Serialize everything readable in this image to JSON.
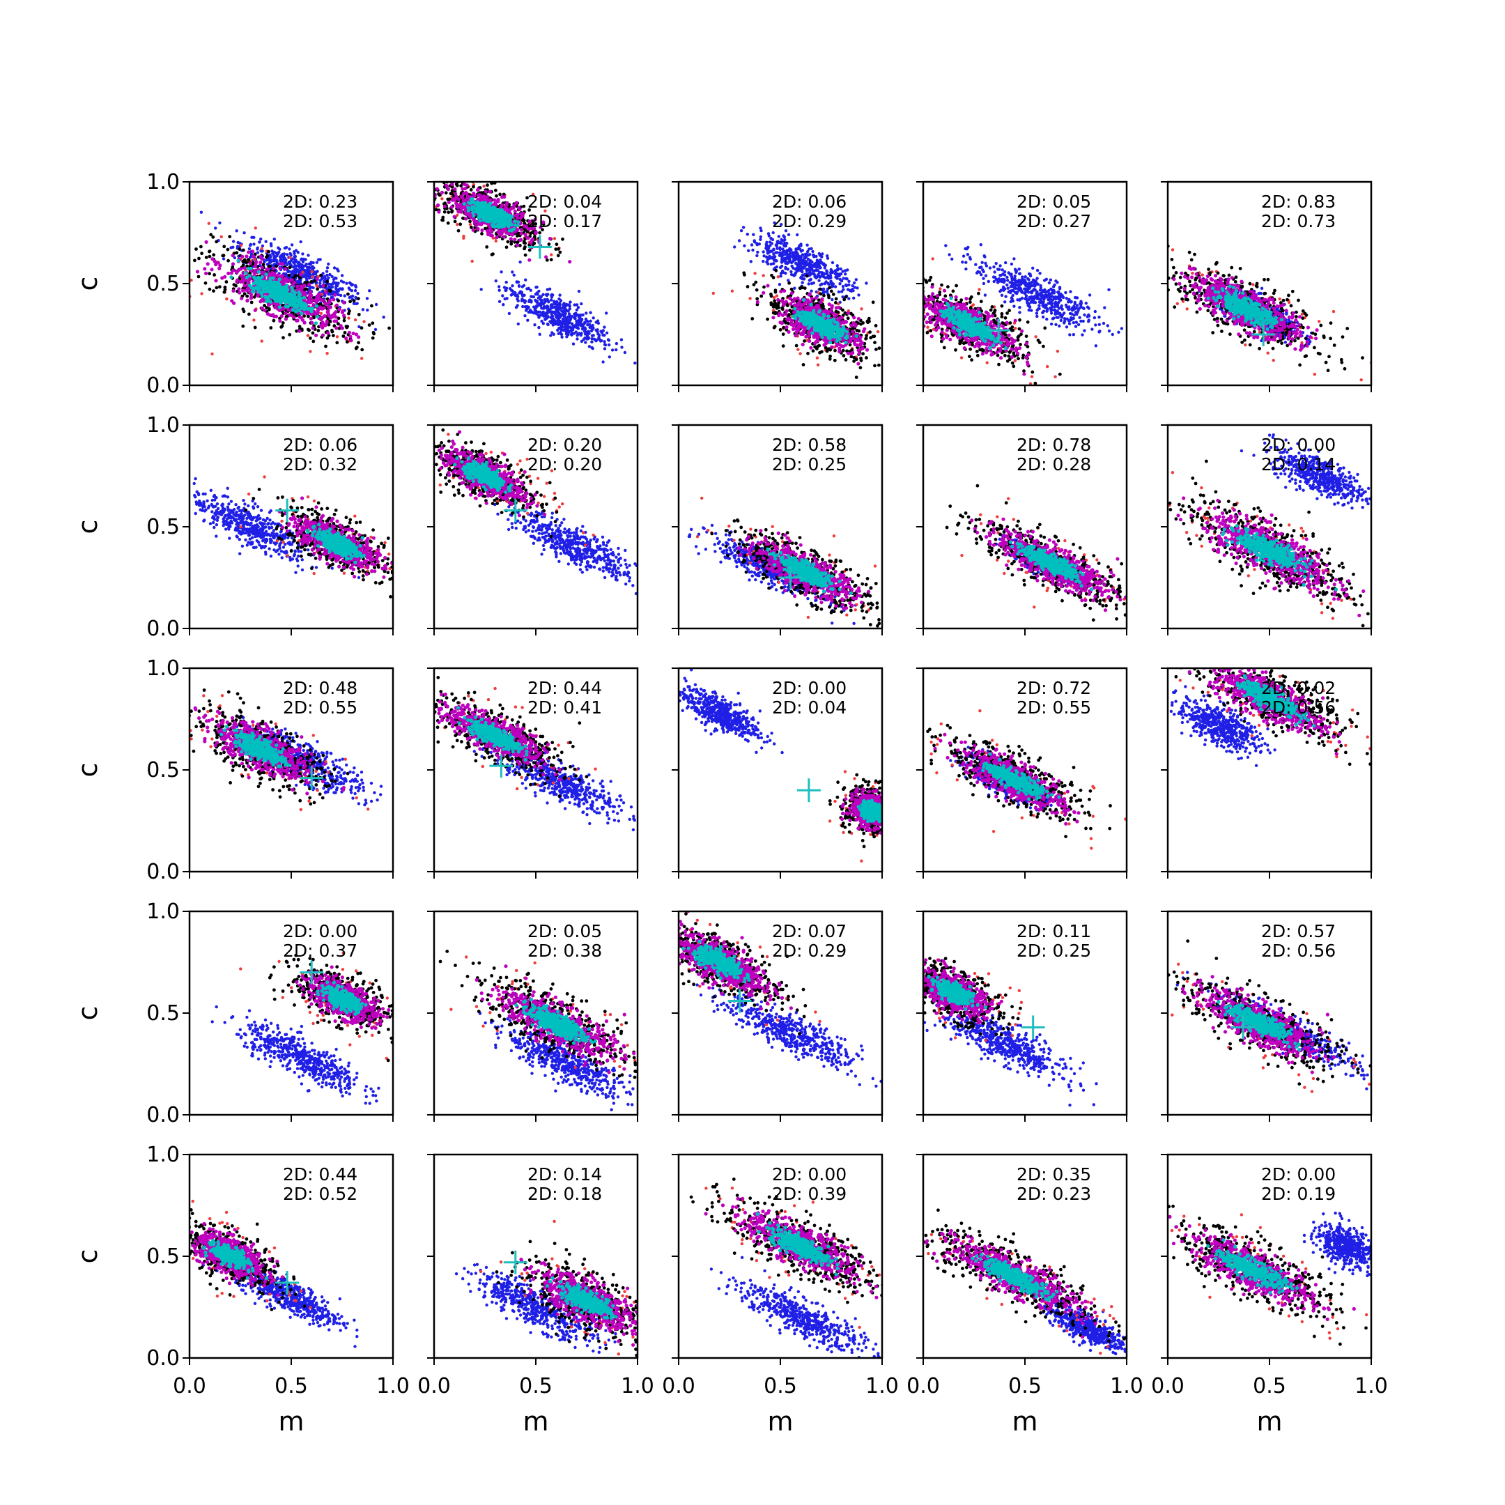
{
  "chart_data": {
    "type": "scatter",
    "layout": "grid 5 rows x 5 columns",
    "xlabel": "m",
    "ylabel": "c",
    "xlim": [
      0,
      1
    ],
    "ylim": [
      0,
      1
    ],
    "xticks": [
      "0.0",
      "0.5",
      "1.0"
    ],
    "yticks": [
      "0.0",
      "0.5",
      "1.0"
    ],
    "stat_prefix": "2D: ",
    "slope": -0.5,
    "colors": {
      "red": "#f03c3c",
      "black": "#000000",
      "magenta": "#bf00bf",
      "cyan": "#00bfbf",
      "blue": "#1f1fe6",
      "marker": "#1fbfbf"
    },
    "panels": [
      {
        "stat1": "0.23",
        "stat2": "0.53",
        "fit": {
          "x": 0.45,
          "y": 0.45,
          "spread": 0.35,
          "width": 0.09
        },
        "blue": {
          "x": 0.55,
          "y": 0.55,
          "spread": 0.3,
          "width": 0.07
        },
        "marker": null
      },
      {
        "stat1": "0.04",
        "stat2": "0.17",
        "fit": {
          "x": 0.28,
          "y": 0.84,
          "spread": 0.25,
          "width": 0.07
        },
        "blue": {
          "x": 0.6,
          "y": 0.35,
          "spread": 0.25,
          "width": 0.07
        },
        "marker": {
          "x": 0.52,
          "y": 0.68
        }
      },
      {
        "stat1": "0.06",
        "stat2": "0.29",
        "fit": {
          "x": 0.7,
          "y": 0.3,
          "spread": 0.25,
          "width": 0.08
        },
        "blue": {
          "x": 0.6,
          "y": 0.6,
          "spread": 0.25,
          "width": 0.07
        },
        "marker": null
      },
      {
        "stat1": "0.05",
        "stat2": "0.27",
        "fit": {
          "x": 0.22,
          "y": 0.3,
          "spread": 0.3,
          "width": 0.08
        },
        "blue": {
          "x": 0.55,
          "y": 0.45,
          "spread": 0.3,
          "width": 0.07
        },
        "marker": {
          "x": 0.37,
          "y": 0.27
        }
      },
      {
        "stat1": "0.83",
        "stat2": "0.73",
        "fit": {
          "x": 0.38,
          "y": 0.38,
          "spread": 0.35,
          "width": 0.08
        },
        "blue": {
          "x": 0.45,
          "y": 0.35,
          "spread": 0.2,
          "width": 0.06
        },
        "marker": {
          "x": 0.47,
          "y": 0.25
        }
      },
      {
        "stat1": "0.06",
        "stat2": "0.32",
        "fit": {
          "x": 0.72,
          "y": 0.42,
          "spread": 0.25,
          "width": 0.07
        },
        "blue": {
          "x": 0.3,
          "y": 0.5,
          "spread": 0.3,
          "width": 0.07
        },
        "marker": {
          "x": 0.48,
          "y": 0.58
        }
      },
      {
        "stat1": "0.20",
        "stat2": "0.20",
        "fit": {
          "x": 0.25,
          "y": 0.75,
          "spread": 0.25,
          "width": 0.07
        },
        "blue": {
          "x": 0.7,
          "y": 0.4,
          "spread": 0.28,
          "width": 0.07
        },
        "marker": {
          "x": 0.4,
          "y": 0.58
        }
      },
      {
        "stat1": "0.58",
        "stat2": "0.25",
        "fit": {
          "x": 0.62,
          "y": 0.28,
          "spread": 0.32,
          "width": 0.07
        },
        "blue": {
          "x": 0.45,
          "y": 0.3,
          "spread": 0.28,
          "width": 0.06
        },
        "marker": {
          "x": 0.55,
          "y": 0.25
        }
      },
      {
        "stat1": "0.78",
        "stat2": "0.28",
        "fit": {
          "x": 0.63,
          "y": 0.32,
          "spread": 0.35,
          "width": 0.07
        },
        "blue": {
          "x": 0.6,
          "y": 0.32,
          "spread": 0.15,
          "width": 0.04
        },
        "marker": null
      },
      {
        "stat1": "0.00",
        "stat2": "0.14",
        "fit": {
          "x": 0.5,
          "y": 0.38,
          "spread": 0.4,
          "width": 0.09
        },
        "blue": {
          "x": 0.75,
          "y": 0.75,
          "spread": 0.22,
          "width": 0.07
        },
        "marker": null
      },
      {
        "stat1": "0.48",
        "stat2": "0.55",
        "fit": {
          "x": 0.35,
          "y": 0.6,
          "spread": 0.3,
          "width": 0.08
        },
        "blue": {
          "x": 0.55,
          "y": 0.55,
          "spread": 0.3,
          "width": 0.07
        },
        "marker": {
          "x": 0.6,
          "y": 0.46
        }
      },
      {
        "stat1": "0.44",
        "stat2": "0.41",
        "fit": {
          "x": 0.3,
          "y": 0.67,
          "spread": 0.3,
          "width": 0.07
        },
        "blue": {
          "x": 0.6,
          "y": 0.45,
          "spread": 0.3,
          "width": 0.07
        },
        "marker": {
          "x": 0.33,
          "y": 0.52
        }
      },
      {
        "stat1": "0.00",
        "stat2": "0.04",
        "fit": {
          "x": 0.95,
          "y": 0.3,
          "spread": 0.12,
          "width": 0.07
        },
        "blue": {
          "x": 0.2,
          "y": 0.78,
          "spread": 0.2,
          "width": 0.06
        },
        "marker": {
          "x": 0.64,
          "y": 0.4
        }
      },
      {
        "stat1": "0.72",
        "stat2": "0.55",
        "fit": {
          "x": 0.45,
          "y": 0.45,
          "spread": 0.32,
          "width": 0.07
        },
        "blue": {
          "x": 0.4,
          "y": 0.45,
          "spread": 0.2,
          "width": 0.05
        },
        "marker": null
      },
      {
        "stat1": "0.02",
        "stat2": "0.56",
        "fit": {
          "x": 0.5,
          "y": 0.85,
          "spread": 0.35,
          "width": 0.08
        },
        "blue": {
          "x": 0.25,
          "y": 0.72,
          "spread": 0.2,
          "width": 0.07
        },
        "marker": null
      },
      {
        "stat1": "0.00",
        "stat2": "0.37",
        "fit": {
          "x": 0.75,
          "y": 0.57,
          "spread": 0.22,
          "width": 0.07
        },
        "blue": {
          "x": 0.55,
          "y": 0.28,
          "spread": 0.3,
          "width": 0.07
        },
        "marker": {
          "x": 0.6,
          "y": 0.7
        }
      },
      {
        "stat1": "0.05",
        "stat2": "0.38",
        "fit": {
          "x": 0.6,
          "y": 0.45,
          "spread": 0.35,
          "width": 0.08
        },
        "blue": {
          "x": 0.65,
          "y": 0.25,
          "spread": 0.3,
          "width": 0.07
        },
        "marker": null
      },
      {
        "stat1": "0.07",
        "stat2": "0.29",
        "fit": {
          "x": 0.2,
          "y": 0.75,
          "spread": 0.3,
          "width": 0.08
        },
        "blue": {
          "x": 0.55,
          "y": 0.4,
          "spread": 0.32,
          "width": 0.07
        },
        "marker": {
          "x": 0.3,
          "y": 0.56
        }
      },
      {
        "stat1": "0.11",
        "stat2": "0.25",
        "fit": {
          "x": 0.15,
          "y": 0.6,
          "spread": 0.22,
          "width": 0.07
        },
        "blue": {
          "x": 0.4,
          "y": 0.35,
          "spread": 0.3,
          "width": 0.07
        },
        "marker": {
          "x": 0.54,
          "y": 0.43
        }
      },
      {
        "stat1": "0.57",
        "stat2": "0.56",
        "fit": {
          "x": 0.45,
          "y": 0.45,
          "spread": 0.35,
          "width": 0.08
        },
        "blue": {
          "x": 0.6,
          "y": 0.4,
          "spread": 0.35,
          "width": 0.06
        },
        "marker": {
          "x": 0.37,
          "y": 0.43
        }
      },
      {
        "stat1": "0.44",
        "stat2": "0.52",
        "fit": {
          "x": 0.2,
          "y": 0.5,
          "spread": 0.22,
          "width": 0.07
        },
        "blue": {
          "x": 0.5,
          "y": 0.3,
          "spread": 0.25,
          "width": 0.06
        },
        "marker": {
          "x": 0.48,
          "y": 0.37
        }
      },
      {
        "stat1": "0.14",
        "stat2": "0.18",
        "fit": {
          "x": 0.75,
          "y": 0.28,
          "spread": 0.3,
          "width": 0.08
        },
        "blue": {
          "x": 0.5,
          "y": 0.25,
          "spread": 0.3,
          "width": 0.07
        },
        "marker": {
          "x": 0.4,
          "y": 0.47
        }
      },
      {
        "stat1": "0.00",
        "stat2": "0.39",
        "fit": {
          "x": 0.6,
          "y": 0.55,
          "spread": 0.35,
          "width": 0.08
        },
        "blue": {
          "x": 0.6,
          "y": 0.2,
          "spread": 0.3,
          "width": 0.07
        },
        "marker": null
      },
      {
        "stat1": "0.35",
        "stat2": "0.23",
        "fit": {
          "x": 0.45,
          "y": 0.4,
          "spread": 0.4,
          "width": 0.07
        },
        "blue": {
          "x": 0.8,
          "y": 0.15,
          "spread": 0.2,
          "width": 0.05
        },
        "marker": null
      },
      {
        "stat1": "0.00",
        "stat2": "0.19",
        "fit": {
          "x": 0.42,
          "y": 0.43,
          "spread": 0.38,
          "width": 0.08
        },
        "blue": {
          "x": 0.88,
          "y": 0.55,
          "spread": 0.15,
          "width": 0.07
        },
        "marker": null
      }
    ]
  }
}
